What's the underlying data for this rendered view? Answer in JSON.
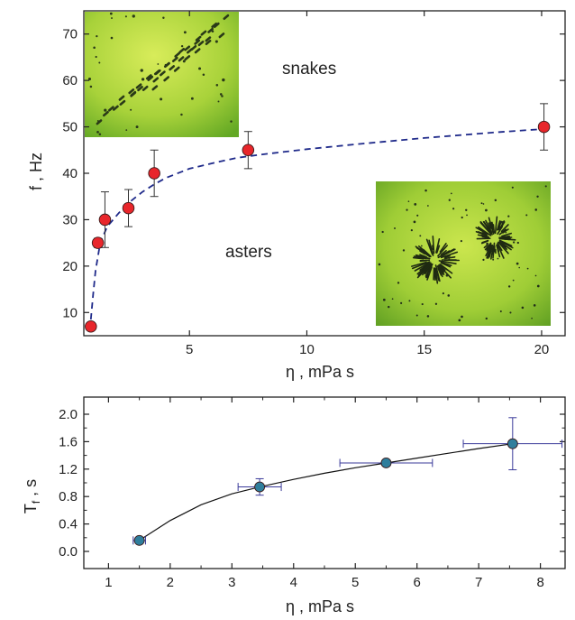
{
  "chart_data": [
    {
      "type": "scatter",
      "title": "",
      "xlabel": "η , mPa s",
      "ylabel": "f , Hz",
      "xlim": [
        0.5,
        21
      ],
      "ylim": [
        5,
        75
      ],
      "xticks": [
        5,
        10,
        15,
        20
      ],
      "yticks": [
        10,
        20,
        30,
        40,
        50,
        60,
        70
      ],
      "grid": false,
      "marker_color": "#e8262b",
      "fit_color": "#1f2a8a",
      "series": [
        {
          "x": [
            0.8,
            1.1,
            1.4,
            2.4,
            3.5,
            7.5,
            20.1
          ],
          "y": [
            7,
            25,
            30,
            32.5,
            40,
            45,
            50
          ],
          "yerr": [
            0,
            1,
            6,
            4,
            5,
            4,
            5
          ]
        }
      ],
      "fit": {
        "x": [
          0.8,
          0.9,
          1.0,
          1.2,
          1.5,
          2.0,
          2.5,
          3.0,
          3.5,
          4.0,
          5.0,
          6.0,
          7.0,
          8.0,
          10.0,
          12.0,
          15.0,
          18.0,
          20.0
        ],
        "y": [
          8.5,
          14,
          19,
          25,
          28.5,
          31.5,
          34,
          36,
          37.6,
          39,
          41,
          42.2,
          43.3,
          44,
          45.2,
          46.2,
          47.6,
          48.8,
          49.5
        ]
      },
      "annotations": [
        "snakes",
        "asters"
      ]
    },
    {
      "type": "scatter",
      "title": "",
      "xlabel": "η , mPa s",
      "ylabel": "T_f , s",
      "xlim": [
        0.6,
        8.4
      ],
      "ylim": [
        -0.25,
        2.25
      ],
      "xticks": [
        1,
        2,
        3,
        4,
        5,
        6,
        7,
        8
      ],
      "yticks": [
        0.0,
        0.4,
        0.8,
        1.2,
        1.6,
        2.0
      ],
      "yticks_minor": [
        0.2,
        0.6,
        1.0,
        1.4,
        1.8
      ],
      "grid": false,
      "marker_color": "#2f7e9c",
      "errorbar_color": "#3a3a9a",
      "series": [
        {
          "x": [
            1.5,
            3.45,
            5.5,
            7.55
          ],
          "y": [
            0.16,
            0.94,
            1.29,
            1.57
          ],
          "xerr": [
            0.1,
            0.35,
            0.75,
            0.8
          ],
          "yerr": [
            0.04,
            0.12,
            0.04,
            0.38
          ]
        }
      ],
      "fit": {
        "x": [
          1.5,
          2.0,
          2.5,
          3.0,
          3.45,
          4.0,
          4.5,
          5.0,
          5.5,
          6.0,
          6.5,
          7.0,
          7.55
        ],
        "y": [
          0.16,
          0.45,
          0.68,
          0.84,
          0.94,
          1.05,
          1.14,
          1.22,
          1.29,
          1.36,
          1.43,
          1.5,
          1.57
        ]
      }
    }
  ]
}
